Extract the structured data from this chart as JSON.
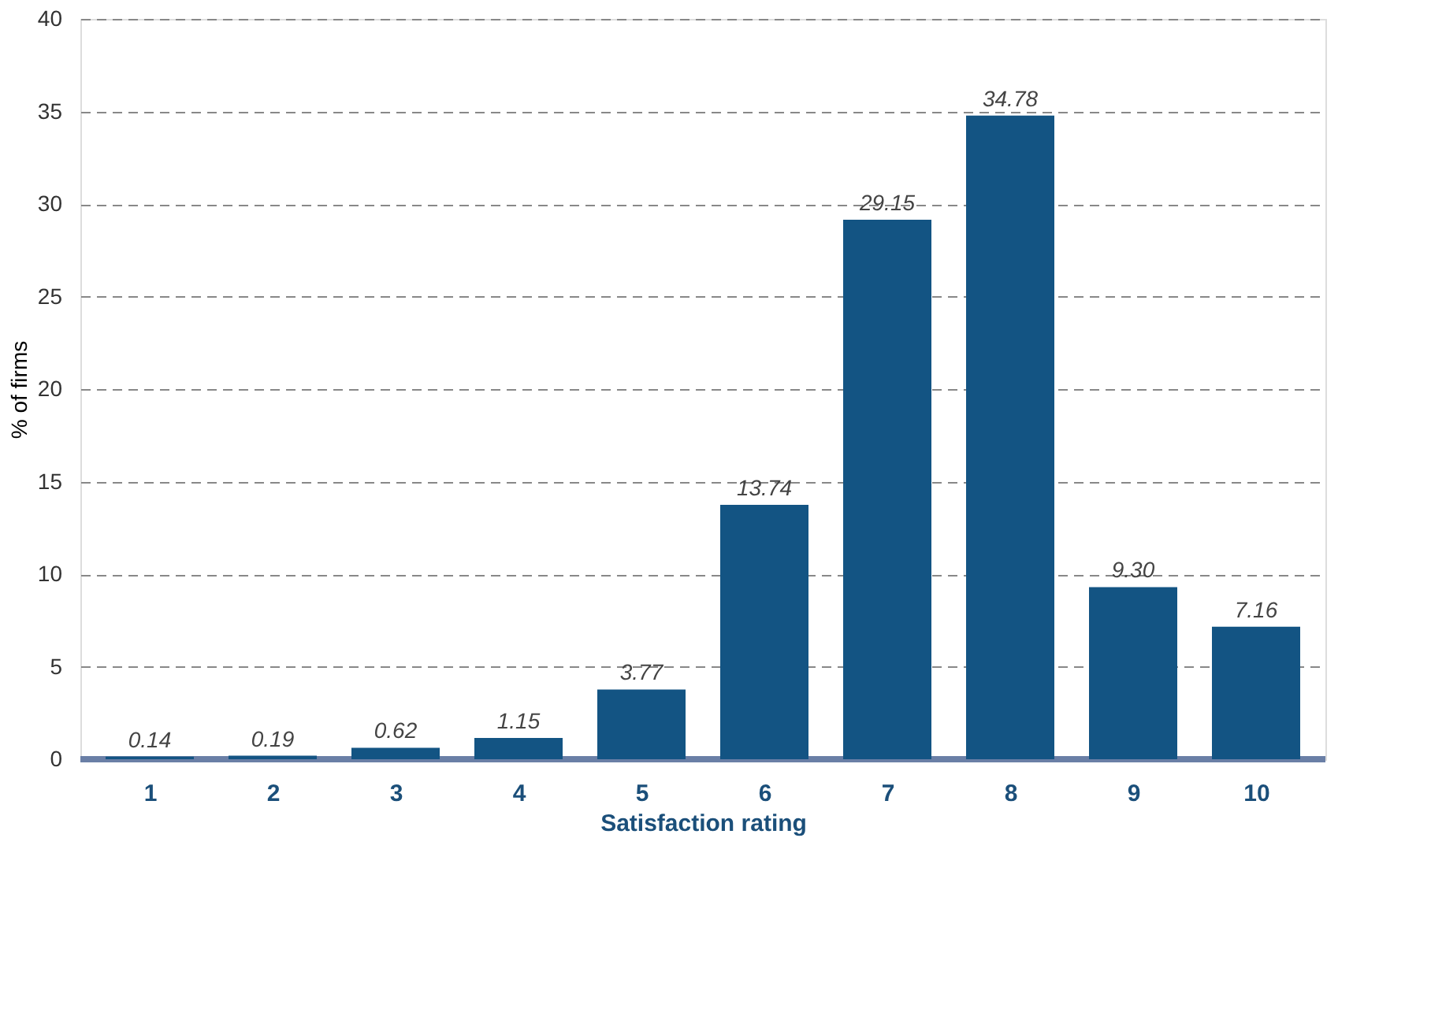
{
  "chart_data": {
    "type": "bar",
    "xlabel": "Satisfaction rating",
    "ylabel": "% of firms",
    "categories": [
      "1",
      "2",
      "3",
      "4",
      "5",
      "6",
      "7",
      "8",
      "9",
      "10"
    ],
    "series": [
      {
        "color": "#135483",
        "values": [
          0.14,
          0.19,
          0.62,
          1.15,
          3.77,
          13.74,
          29.15,
          34.78,
          9.3,
          7.16
        ],
        "value_labels": [
          "0.14",
          "0.19",
          "0.62",
          "1.15",
          "3.77",
          "13.74",
          "29.15",
          "34.78",
          "9.30",
          "7.16"
        ]
      }
    ],
    "ylim": [
      0,
      40
    ],
    "yticks": [
      0,
      5,
      10,
      15,
      20,
      25,
      30,
      35,
      40
    ],
    "grid": "y"
  }
}
